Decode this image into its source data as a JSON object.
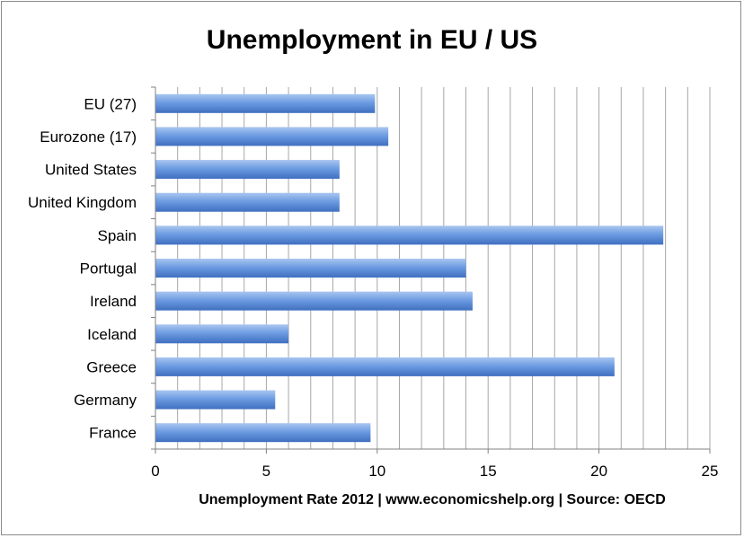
{
  "chart_data": {
    "type": "bar",
    "orientation": "horizontal",
    "title": "Unemployment in EU / US",
    "xlabel": "Unemployment Rate 2012 | www.economicshelp.org | Source: OECD",
    "ylabel": "",
    "categories": [
      "EU (27)",
      "Eurozone (17)",
      "United States",
      "United Kingdom",
      "Spain",
      "Portugal",
      "Ireland",
      "Iceland",
      "Greece",
      "Germany",
      "France"
    ],
    "values": [
      9.9,
      10.5,
      8.3,
      8.3,
      22.9,
      14.0,
      14.3,
      6.0,
      20.7,
      5.4,
      9.7
    ],
    "xlim": [
      0,
      25
    ],
    "xticks": [
      0,
      5,
      10,
      15,
      20,
      25
    ],
    "grid": true,
    "bar_color": "#5b8fd9",
    "legend": "none"
  }
}
